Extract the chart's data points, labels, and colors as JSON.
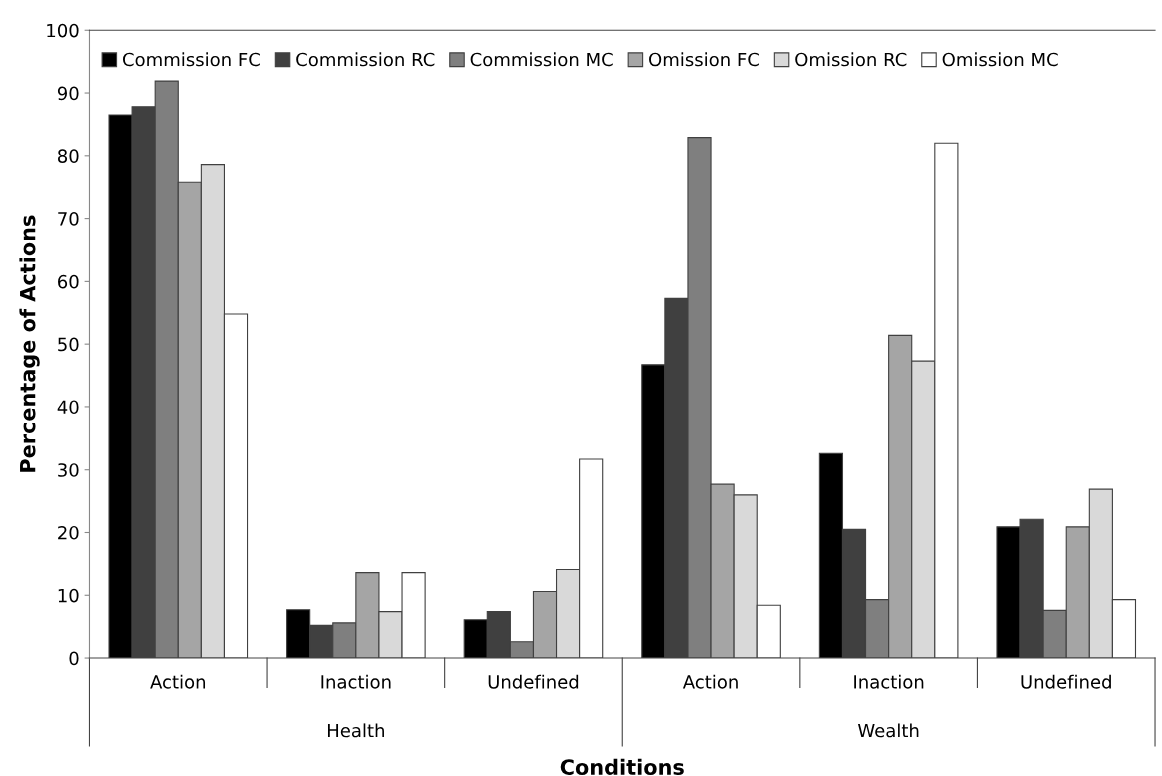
{
  "chart_data": {
    "type": "bar",
    "xlabel": "Conditions",
    "ylabel": "Percentage of Actions",
    "categories": [
      "Action",
      "Inaction",
      "Undefined",
      "Action",
      "Inaction",
      "Undefined"
    ],
    "annotations": [
      "Health",
      "Wealth"
    ],
    "series": [
      {
        "name": "Commission FC",
        "color": "#000000",
        "values": [
          86.5,
          7.7,
          6.1,
          46.7,
          32.6,
          20.9
        ]
      },
      {
        "name": "Commission RC",
        "color": "#404040",
        "values": [
          87.8,
          5.2,
          7.4,
          57.3,
          20.5,
          22.1
        ]
      },
      {
        "name": "Commission MC",
        "color": "#7f7f7f",
        "values": [
          91.9,
          5.6,
          2.6,
          82.9,
          9.3,
          7.6
        ]
      },
      {
        "name": "Omission FC",
        "color": "#a5a5a5",
        "values": [
          75.8,
          13.6,
          10.6,
          27.7,
          51.4,
          20.9
        ]
      },
      {
        "name": "Omission RC",
        "color": "#d9d9d9",
        "values": [
          78.6,
          7.4,
          14.1,
          26.0,
          47.3,
          26.9
        ]
      },
      {
        "name": "Omission MC",
        "color": "#ffffff",
        "values": [
          54.8,
          13.6,
          31.7,
          8.4,
          82.0,
          9.3
        ]
      }
    ],
    "ylim": [
      0,
      100
    ],
    "yticks": [
      0,
      10,
      20,
      30,
      40,
      50,
      60,
      70,
      80,
      90,
      100
    ],
    "legend": "top",
    "grid": false
  }
}
